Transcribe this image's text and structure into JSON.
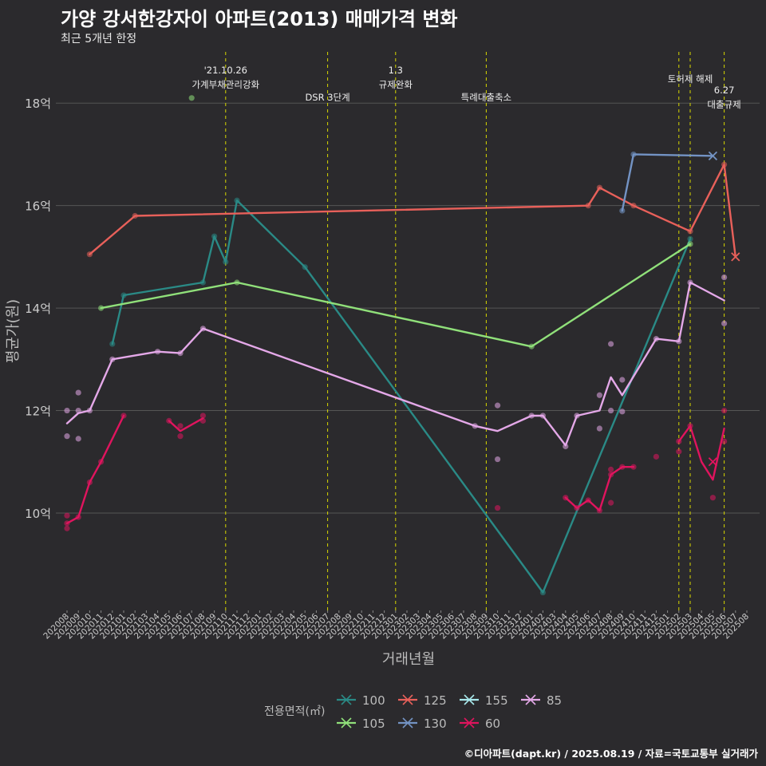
{
  "title": "가양 강서한강자이 아파트(2013) 매매가격 변화",
  "subtitle": "최근 5개년 한정",
  "caption": "©디아파트(dapt.kr) / 2025.08.19 / 자료=국토교통부 실거래가",
  "colors": {
    "background": "#2b2a2d",
    "grid": "#555555",
    "event_line": "#d8d800",
    "text": "#ffffff",
    "axis_text": "#cccccc"
  },
  "chart_data": {
    "type": "line",
    "xlabel": "거래년월",
    "ylabel": "평균가(원)",
    "ylim": [
      8.1,
      19.0
    ],
    "y_unit": "억",
    "y_ticks": [
      {
        "value": 10,
        "label": "10억"
      },
      {
        "value": 12,
        "label": "12억"
      },
      {
        "value": 14,
        "label": "14억"
      },
      {
        "value": 16,
        "label": "16억"
      },
      {
        "value": 18,
        "label": "18억"
      }
    ],
    "x_ticks": [
      "202008",
      "202009",
      "202010",
      "202011",
      "202012",
      "202101",
      "202102",
      "202103",
      "202104",
      "202105",
      "202106",
      "202107",
      "202108",
      "202109",
      "202110",
      "202111",
      "202112",
      "202201",
      "202202",
      "202203",
      "202204",
      "202205",
      "202206",
      "202207",
      "202208",
      "202209",
      "202210",
      "202211",
      "202212",
      "202301",
      "202302",
      "202303",
      "202304",
      "202305",
      "202306",
      "202307",
      "202308",
      "202309",
      "202310",
      "202311",
      "202312",
      "202401",
      "202402",
      "202403",
      "202404",
      "202405",
      "202406",
      "202407",
      "202408",
      "202409",
      "202410",
      "202411",
      "202412",
      "202501",
      "202502",
      "202503",
      "202504",
      "202505",
      "202506",
      "202507",
      "202508"
    ],
    "grid": true,
    "legend": {
      "title": "전용면적(㎡)",
      "position": "bottom",
      "entries": [
        {
          "name": "100",
          "color": "#2a8a86"
        },
        {
          "name": "105",
          "color": "#90e07a"
        },
        {
          "name": "125",
          "color": "#e8605a"
        },
        {
          "name": "130",
          "color": "#7393c4"
        },
        {
          "name": "155",
          "color": "#a8e8ec"
        },
        {
          "name": "60",
          "color": "#e0145e"
        },
        {
          "name": "85",
          "color": "#e4a8e8"
        }
      ]
    },
    "events": [
      {
        "x": "202110",
        "lines": [
          "'21.10.26",
          "가계부채관리강화"
        ],
        "level": 1
      },
      {
        "x": "202207",
        "lines": [
          "DSR 3단계"
        ],
        "level": 3
      },
      {
        "x": "202301",
        "lines": [
          "1.3",
          "규제완화"
        ],
        "level": 1
      },
      {
        "x": "202309",
        "lines": [
          "특례대출축소"
        ],
        "level": 3
      },
      {
        "x": "202502",
        "lines": [],
        "level": 0
      },
      {
        "x": "202503",
        "lines": [
          "토허제 해제"
        ],
        "level": 2
      },
      {
        "x": "202506",
        "lines": [
          "6.27",
          "대출규제"
        ],
        "level": 4
      }
    ],
    "series": [
      {
        "name": "100",
        "color": "#2a8a86",
        "line": [
          [
            "202012",
            13.3
          ],
          [
            "202101",
            14.25
          ],
          [
            "202108",
            14.5
          ],
          [
            "202109",
            15.4
          ],
          [
            "202110",
            14.9
          ],
          [
            "202111",
            16.1
          ],
          [
            "202205",
            14.8
          ],
          [
            "202402",
            8.45
          ],
          [
            "202503",
            15.35
          ]
        ],
        "points": [
          [
            "202012",
            13.3
          ],
          [
            "202101",
            14.25
          ],
          [
            "202108",
            14.5
          ],
          [
            "202109",
            15.4
          ],
          [
            "202110",
            14.9
          ],
          [
            "202111",
            16.1
          ],
          [
            "202205",
            14.8
          ],
          [
            "202402",
            8.45
          ],
          [
            "202503",
            15.35
          ]
        ]
      },
      {
        "name": "105",
        "color": "#90e07a",
        "line": [
          [
            "202011",
            14.0
          ],
          [
            "202111",
            14.5
          ],
          [
            "202401",
            13.25
          ],
          [
            "202503",
            15.25
          ]
        ],
        "points": [
          [
            "202011",
            14.0
          ],
          [
            "202111",
            14.5
          ],
          [
            "202401",
            13.25
          ],
          [
            "202503",
            15.25
          ],
          [
            "202107",
            18.1
          ]
        ]
      },
      {
        "name": "125",
        "color": "#e8605a",
        "line": [
          [
            "202010",
            15.05
          ],
          [
            "202102",
            15.8
          ],
          [
            "202406",
            16.0
          ],
          [
            "202407",
            16.35
          ],
          [
            "202410",
            16.0
          ],
          [
            "202503",
            15.5
          ],
          [
            "202506",
            16.8
          ],
          [
            "202507",
            15.0
          ]
        ],
        "points": [
          [
            "202010",
            15.05
          ],
          [
            "202102",
            15.8
          ],
          [
            "202406",
            16.0
          ],
          [
            "202407",
            16.35
          ],
          [
            "202410",
            16.0
          ],
          [
            "202503",
            15.5
          ],
          [
            "202506",
            16.8
          ]
        ],
        "cross": [
          [
            "202507",
            15.0
          ]
        ]
      },
      {
        "name": "130",
        "color": "#7393c4",
        "line": [
          [
            "202409",
            15.9
          ],
          [
            "202410",
            17.0
          ],
          [
            "202505",
            16.97
          ]
        ],
        "points": [
          [
            "202409",
            15.9
          ],
          [
            "202410",
            17.0
          ]
        ],
        "cross": [
          [
            "202505",
            16.97
          ]
        ]
      },
      {
        "name": "155",
        "color": "#a8e8ec",
        "line": [],
        "points": []
      },
      {
        "name": "60",
        "color": "#e0145e",
        "line": [
          [
            "202008",
            9.8
          ],
          [
            "202009",
            9.92
          ],
          [
            "202010",
            10.6
          ],
          [
            "202011",
            11.0
          ],
          [
            "202101",
            11.9
          ],
          null,
          [
            "202105",
            11.8
          ],
          [
            "202106",
            11.6
          ],
          [
            "202108",
            11.85
          ],
          null,
          [
            "202404",
            10.3
          ],
          [
            "202405",
            10.1
          ],
          [
            "202406",
            10.25
          ],
          [
            "202407",
            10.05
          ],
          [
            "202408",
            10.75
          ],
          [
            "202409",
            10.9
          ],
          [
            "202410",
            10.9
          ],
          null,
          [
            "202502",
            11.4
          ],
          [
            "202503",
            11.7
          ],
          [
            "202504",
            11.0
          ],
          [
            "202505",
            10.65
          ],
          [
            "202506",
            11.65
          ]
        ],
        "points": [
          [
            "202008",
            9.95
          ],
          [
            "202008",
            9.8
          ],
          [
            "202008",
            9.7
          ],
          [
            "202009",
            9.92
          ],
          [
            "202010",
            10.6
          ],
          [
            "202011",
            11.0
          ],
          [
            "202101",
            11.9
          ],
          [
            "202105",
            11.8
          ],
          [
            "202106",
            11.7
          ],
          [
            "202106",
            11.5
          ],
          [
            "202108",
            11.9
          ],
          [
            "202108",
            11.8
          ],
          [
            "202310",
            10.1
          ],
          [
            "202404",
            10.3
          ],
          [
            "202405",
            10.1
          ],
          [
            "202406",
            10.25
          ],
          [
            "202407",
            10.05
          ],
          [
            "202408",
            10.85
          ],
          [
            "202408",
            10.75
          ],
          [
            "202408",
            10.2
          ],
          [
            "202409",
            10.9
          ],
          [
            "202410",
            10.9
          ],
          [
            "202412",
            11.1
          ],
          [
            "202502",
            11.2
          ],
          [
            "202502",
            11.4
          ],
          [
            "202503",
            11.7
          ],
          [
            "202505",
            10.3
          ],
          [
            "202506",
            12.0
          ],
          [
            "202506",
            11.4
          ]
        ],
        "cross": [
          [
            "202505",
            11.0
          ]
        ]
      },
      {
        "name": "85",
        "color": "#e4a8e8",
        "line": [
          [
            "202008",
            11.75
          ],
          [
            "202009",
            11.95
          ],
          [
            "202010",
            12.0
          ],
          [
            "202012",
            13.0
          ],
          [
            "202104",
            13.15
          ],
          [
            "202106",
            13.12
          ],
          [
            "202108",
            13.6
          ],
          [
            "202308",
            11.7
          ],
          [
            "202310",
            11.6
          ],
          [
            "202401",
            11.9
          ],
          [
            "202402",
            11.9
          ],
          [
            "202404",
            11.32
          ],
          [
            "202405",
            11.9
          ],
          [
            "202407",
            12.0
          ],
          [
            "202408",
            12.65
          ],
          [
            "202409",
            12.3
          ],
          [
            "202412",
            13.4
          ],
          [
            "202502",
            13.35
          ],
          [
            "202503",
            14.5
          ],
          [
            "202506",
            14.15
          ]
        ],
        "points": [
          [
            "202008",
            12.0
          ],
          [
            "202008",
            11.5
          ],
          [
            "202009",
            12.35
          ],
          [
            "202009",
            12.0
          ],
          [
            "202009",
            11.45
          ],
          [
            "202010",
            12.0
          ],
          [
            "202012",
            13.0
          ],
          [
            "202104",
            13.15
          ],
          [
            "202106",
            13.12
          ],
          [
            "202108",
            13.6
          ],
          [
            "202308",
            11.7
          ],
          [
            "202310",
            12.1
          ],
          [
            "202310",
            11.05
          ],
          [
            "202401",
            11.9
          ],
          [
            "202402",
            11.9
          ],
          [
            "202404",
            11.3
          ],
          [
            "202405",
            11.9
          ],
          [
            "202407",
            12.3
          ],
          [
            "202407",
            11.65
          ],
          [
            "202408",
            13.3
          ],
          [
            "202408",
            12.0
          ],
          [
            "202409",
            12.6
          ],
          [
            "202409",
            11.98
          ],
          [
            "202412",
            13.4
          ],
          [
            "202502",
            13.35
          ],
          [
            "202503",
            14.5
          ],
          [
            "202506",
            14.6
          ],
          [
            "202506",
            13.7
          ]
        ]
      }
    ]
  }
}
